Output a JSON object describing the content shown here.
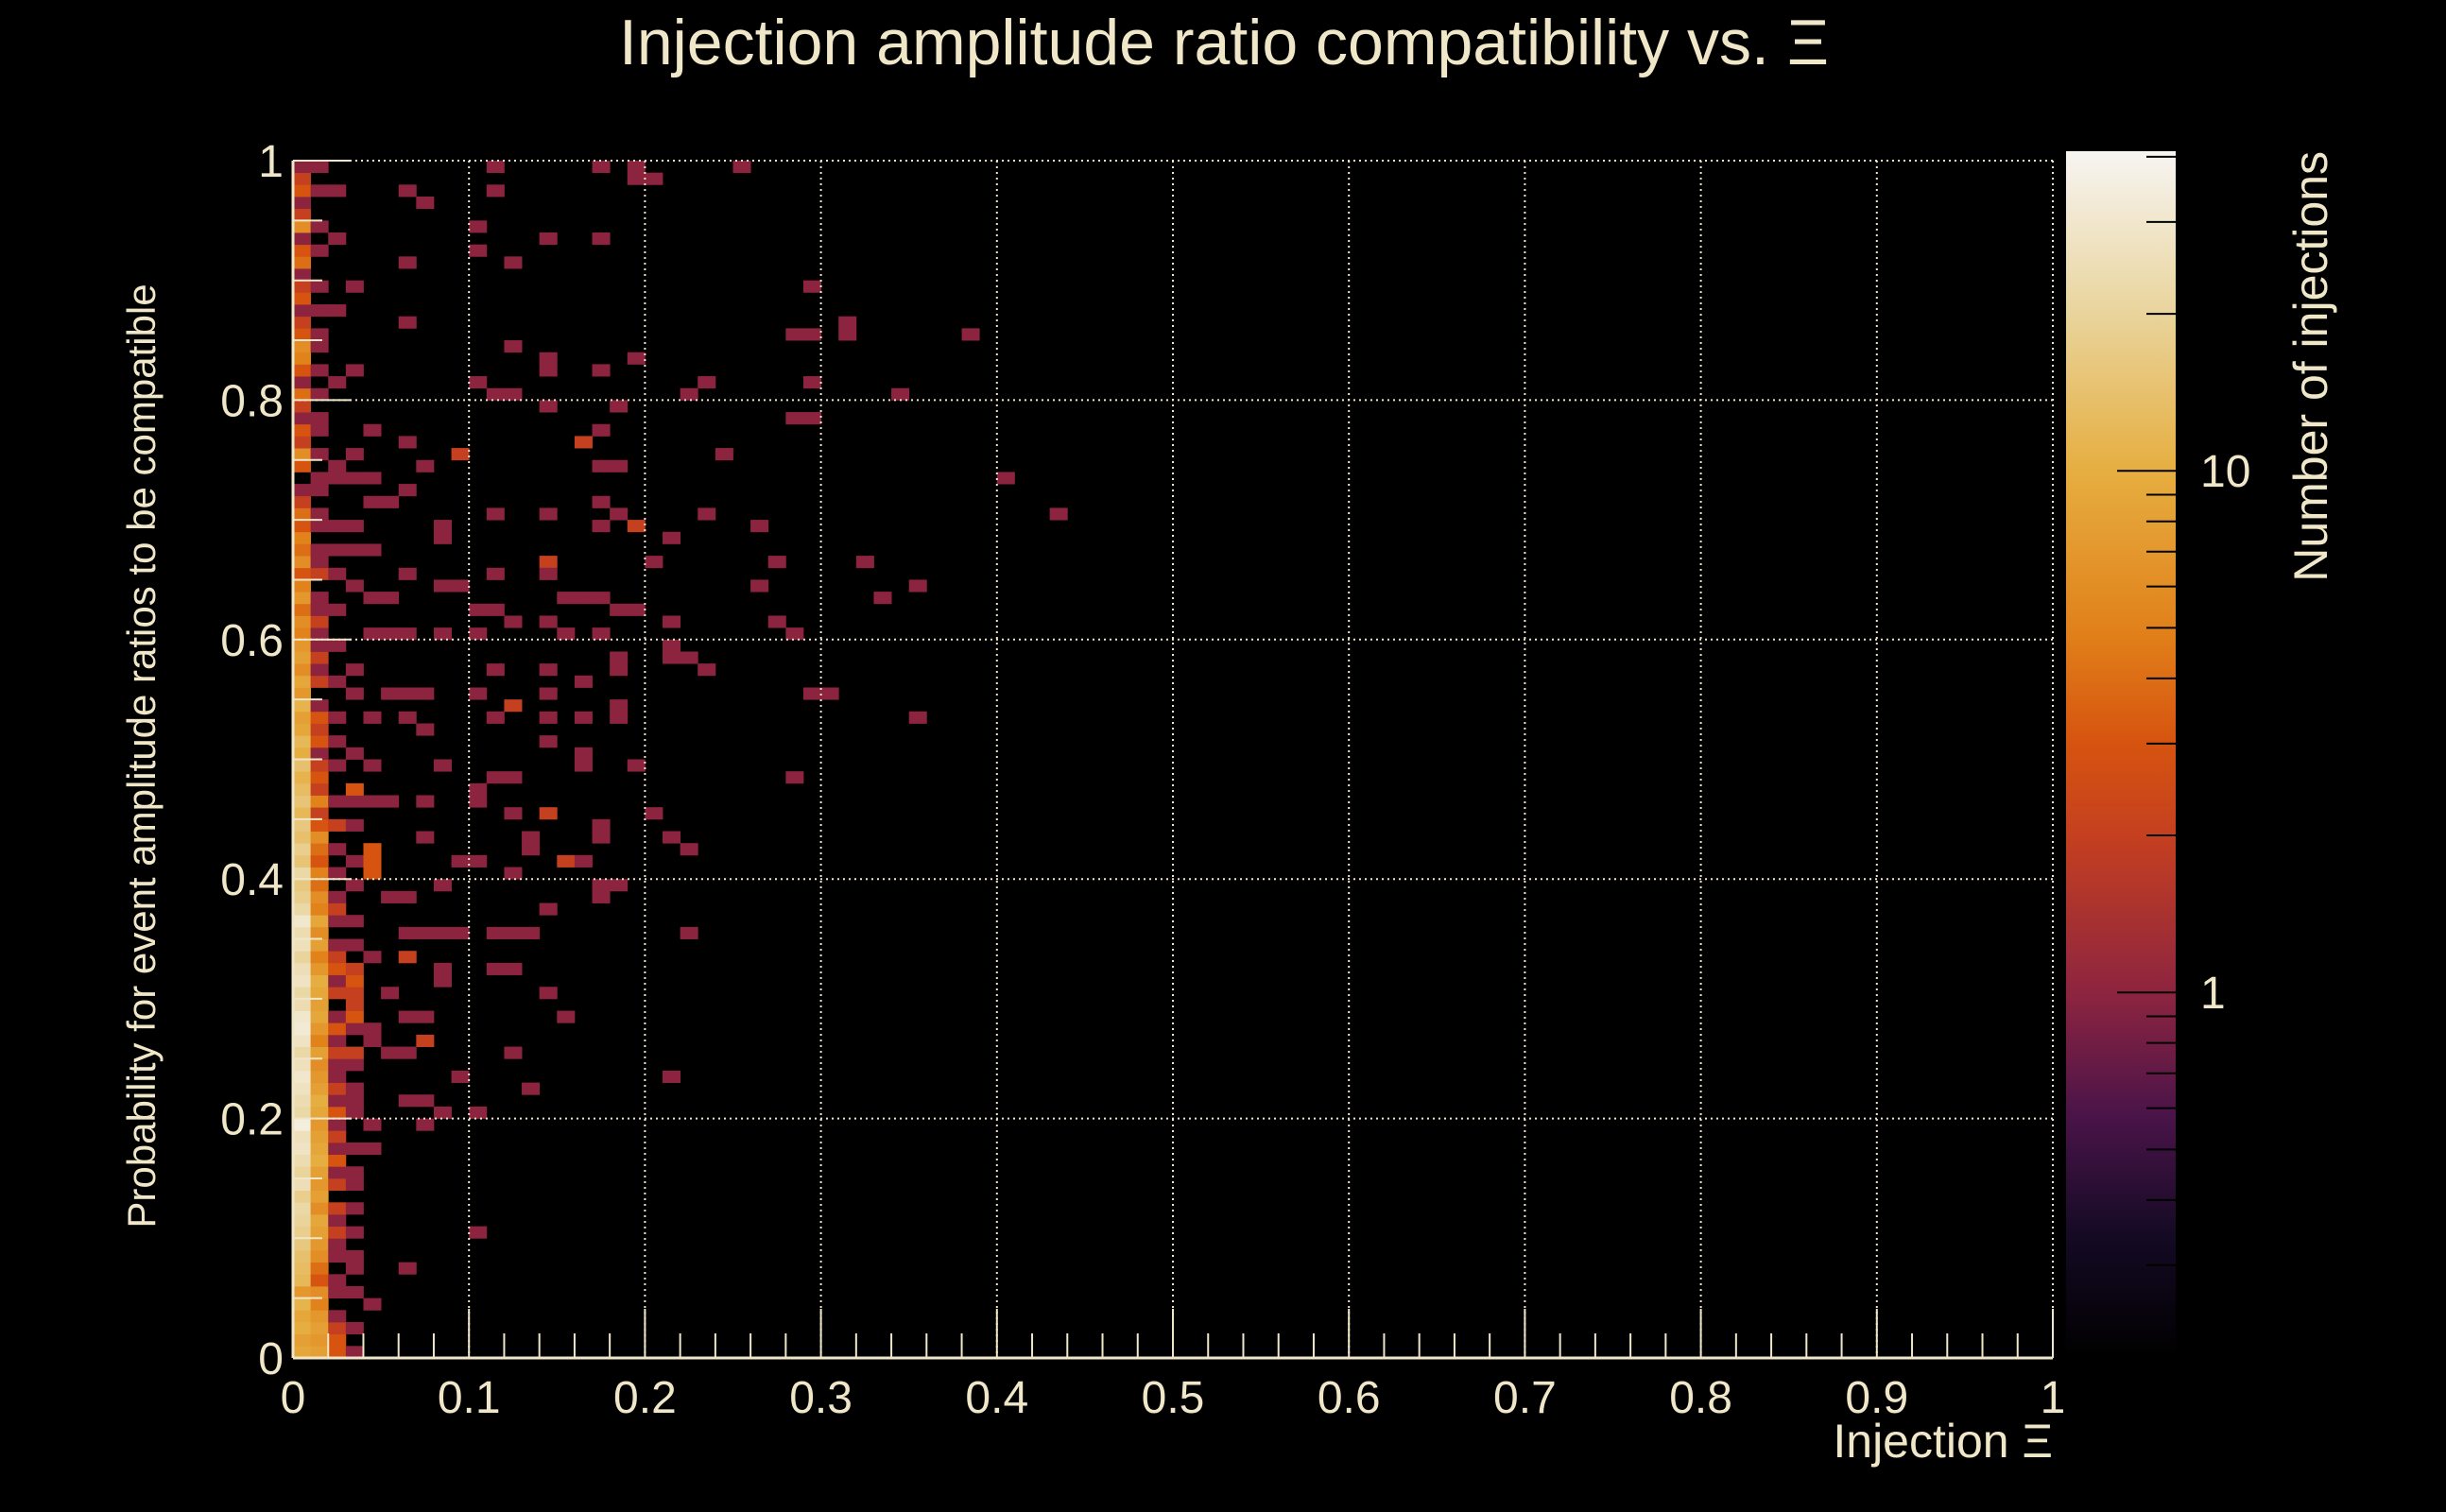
{
  "chart_data": {
    "type": "heatmap",
    "title": "Injection amplitude ratio compatibility vs. Ξ",
    "xlabel": "Injection Ξ",
    "ylabel": "Probability for event amplitude ratios to be compatible",
    "zlabel": "Number of injections",
    "xlim": [
      0,
      1
    ],
    "ylim": [
      0,
      1
    ],
    "zlim": [
      0.2,
      41
    ],
    "zscale": "log",
    "bins": {
      "nx": 100,
      "ny": 100
    },
    "grid": true,
    "x_ticks": [
      {
        "v": 0,
        "label": "0"
      },
      {
        "v": 0.1,
        "label": "0.1"
      },
      {
        "v": 0.2,
        "label": "0.2"
      },
      {
        "v": 0.3,
        "label": "0.3"
      },
      {
        "v": 0.4,
        "label": "0.4"
      },
      {
        "v": 0.5,
        "label": "0.5"
      },
      {
        "v": 0.6,
        "label": "0.6"
      },
      {
        "v": 0.7,
        "label": "0.7"
      },
      {
        "v": 0.8,
        "label": "0.8"
      },
      {
        "v": 0.9,
        "label": "0.9"
      },
      {
        "v": 1,
        "label": "1"
      }
    ],
    "y_ticks": [
      {
        "v": 0,
        "label": "0"
      },
      {
        "v": 0.2,
        "label": "0.2"
      },
      {
        "v": 0.4,
        "label": "0.4"
      },
      {
        "v": 0.6,
        "label": "0.6"
      },
      {
        "v": 0.8,
        "label": "0.8"
      },
      {
        "v": 1,
        "label": "1"
      }
    ],
    "z_ticks": [
      {
        "v": 1,
        "label": "1"
      },
      {
        "v": 10,
        "label": "10"
      }
    ],
    "column_counts_note": "counts per y-bin (bottom to top) for x-bins 0..3",
    "columns": [
      [
        9,
        8,
        10,
        9,
        11,
        7,
        12,
        13,
        14,
        16,
        18,
        20,
        22,
        18,
        25,
        20,
        24,
        28,
        26,
        35,
        22,
        24,
        27,
        30,
        26,
        22,
        28,
        32,
        30,
        24,
        22,
        28,
        25,
        20,
        26,
        24,
        30,
        22,
        18,
        16,
        22,
        15,
        18,
        14,
        16,
        12,
        15,
        13,
        11,
        14,
        10,
        12,
        9,
        8,
        11,
        7,
        9,
        6,
        8,
        7,
        5,
        6,
        4,
        7,
        5,
        3,
        6,
        4,
        5,
        3,
        4,
        2,
        1,
        0,
        3,
        6,
        2,
        3,
        1,
        2,
        4,
        1,
        3,
        5,
        6,
        3,
        2,
        1,
        3,
        2,
        1,
        4,
        3,
        1,
        6,
        2,
        1,
        3,
        2,
        1
      ],
      [
        8,
        7,
        8,
        7,
        5,
        6,
        3,
        4,
        6,
        7,
        8,
        9,
        6,
        8,
        7,
        8,
        10,
        9,
        8,
        7,
        9,
        10,
        8,
        7,
        6,
        8,
        5,
        7,
        9,
        8,
        9,
        10,
        7,
        5,
        8,
        6,
        9,
        5,
        6,
        4,
        5,
        3,
        4,
        6,
        3,
        2,
        5,
        2,
        3,
        2,
        1,
        3,
        2,
        3,
        1,
        0,
        2,
        1,
        2,
        1,
        1,
        2,
        1,
        1,
        0,
        2,
        1,
        1,
        0,
        1,
        1,
        0,
        1,
        1,
        0,
        1,
        0,
        1,
        1,
        0,
        1,
        0,
        1,
        0,
        1,
        1,
        0,
        1,
        0,
        1,
        0,
        0,
        1,
        0,
        1,
        0,
        0,
        1,
        0,
        1
      ],
      [
        3,
        3,
        2,
        1,
        0,
        1,
        1,
        0,
        1,
        1,
        2,
        1,
        2,
        0,
        2,
        1,
        3,
        1,
        2,
        1,
        3,
        1,
        2,
        1,
        1,
        2,
        1,
        3,
        1,
        0,
        2,
        1,
        3,
        2,
        1,
        0,
        1,
        2,
        1,
        0,
        1,
        0,
        1,
        0,
        2,
        0,
        1,
        0,
        0,
        1,
        0,
        1,
        0,
        1,
        0,
        0,
        1,
        0,
        0,
        1,
        0,
        0,
        1,
        0,
        0,
        1,
        0,
        0,
        0,
        1,
        0,
        0,
        0,
        0,
        1,
        0,
        0,
        0,
        0,
        0,
        0,
        1,
        0,
        0,
        0,
        0,
        0,
        1,
        0,
        0,
        0,
        0,
        0,
        1,
        0,
        0,
        0,
        0,
        0,
        0
      ],
      [
        1,
        0,
        1,
        0,
        0,
        1,
        0,
        1,
        1,
        0,
        1,
        0,
        1,
        0,
        1,
        1,
        0,
        1,
        0,
        0,
        1,
        0,
        1,
        0,
        1,
        2,
        0,
        1,
        3,
        2,
        2,
        3,
        2,
        0,
        1,
        0,
        1,
        0,
        0,
        1,
        0,
        1,
        0,
        0,
        1,
        0,
        1,
        0,
        0,
        0,
        1,
        0,
        0,
        0,
        0,
        0,
        0,
        1,
        0,
        0,
        0,
        0,
        0,
        0,
        0,
        0,
        0,
        0,
        0,
        1,
        0,
        0,
        0,
        0,
        0,
        0,
        0,
        0,
        0,
        0,
        0,
        0,
        1,
        0,
        0,
        0,
        0,
        0,
        0,
        0,
        0,
        0,
        0,
        0,
        0,
        0,
        0,
        0,
        0,
        0
      ]
    ],
    "cells": [
      [
        0.113,
        0.996,
        1
      ],
      [
        0.175,
        0.99,
        1
      ],
      [
        0.194,
        0.99,
        1
      ],
      [
        0.254,
        0.99,
        1
      ],
      [
        0.194,
        0.98,
        1
      ],
      [
        0.205,
        0.98,
        1
      ],
      [
        0.024,
        0.97,
        1
      ],
      [
        0.066,
        0.97,
        1
      ],
      [
        0.073,
        0.96,
        1
      ],
      [
        0.113,
        0.97,
        1
      ],
      [
        0.101,
        0.94,
        1
      ],
      [
        0.145,
        0.93,
        1
      ],
      [
        0.175,
        0.93,
        1
      ],
      [
        0.025,
        0.93,
        1
      ],
      [
        0.105,
        0.92,
        1
      ],
      [
        0.066,
        0.91,
        1
      ],
      [
        0.122,
        0.91,
        1
      ],
      [
        0.035,
        0.89,
        1
      ],
      [
        0.293,
        0.89,
        1
      ],
      [
        0.066,
        0.86,
        1
      ],
      [
        0.286,
        0.85,
        1
      ],
      [
        0.293,
        0.85,
        1
      ],
      [
        0.314,
        0.855,
        1
      ],
      [
        0.314,
        0.865,
        1
      ],
      [
        0.385,
        0.85,
        1
      ],
      [
        0.122,
        0.84,
        1
      ],
      [
        0.145,
        0.83,
        1
      ],
      [
        0.145,
        0.825,
        1
      ],
      [
        0.175,
        0.82,
        1
      ],
      [
        0.194,
        0.83,
        1
      ],
      [
        0.105,
        0.81,
        1
      ],
      [
        0.113,
        0.8,
        1
      ],
      [
        0.126,
        0.8,
        1
      ],
      [
        0.236,
        0.81,
        1
      ],
      [
        0.223,
        0.8,
        1
      ],
      [
        0.293,
        0.81,
        1
      ],
      [
        0.345,
        0.8,
        1
      ],
      [
        0.145,
        0.79,
        1
      ],
      [
        0.184,
        0.79,
        1
      ],
      [
        0.286,
        0.78,
        1
      ],
      [
        0.293,
        0.78,
        1
      ],
      [
        0.044,
        0.77,
        1
      ],
      [
        0.175,
        0.77,
        1
      ],
      [
        0.165,
        0.76,
        2
      ],
      [
        0.066,
        0.76,
        1
      ],
      [
        0.094,
        0.75,
        2
      ],
      [
        0.035,
        0.75,
        1
      ],
      [
        0.246,
        0.75,
        1
      ],
      [
        0.073,
        0.74,
        1
      ],
      [
        0.175,
        0.74,
        1
      ],
      [
        0.184,
        0.74,
        1
      ],
      [
        0.024,
        0.73,
        1
      ],
      [
        0.035,
        0.73,
        1
      ],
      [
        0.044,
        0.73,
        1
      ],
      [
        0.404,
        0.73,
        1
      ],
      [
        0.066,
        0.72,
        1
      ],
      [
        0.044,
        0.71,
        1
      ],
      [
        0.055,
        0.71,
        1
      ],
      [
        0.113,
        0.7,
        1
      ],
      [
        0.145,
        0.7,
        1
      ],
      [
        0.175,
        0.71,
        1
      ],
      [
        0.435,
        0.7,
        1
      ],
      [
        0.236,
        0.7,
        1
      ],
      [
        0.184,
        0.7,
        1
      ],
      [
        0.194,
        0.69,
        2
      ],
      [
        0.175,
        0.69,
        1
      ],
      [
        0.085,
        0.69,
        1
      ],
      [
        0.085,
        0.68,
        1
      ],
      [
        0.265,
        0.69,
        1
      ],
      [
        0.215,
        0.68,
        1
      ],
      [
        0.024,
        0.67,
        1
      ],
      [
        0.035,
        0.67,
        1
      ],
      [
        0.044,
        0.67,
        1
      ],
      [
        0.204,
        0.66,
        1
      ],
      [
        0.274,
        0.66,
        1
      ],
      [
        0.324,
        0.66,
        1
      ],
      [
        0.145,
        0.66,
        2
      ],
      [
        0.145,
        0.65,
        1
      ],
      [
        0.113,
        0.65,
        1
      ],
      [
        0.066,
        0.65,
        1
      ],
      [
        0.035,
        0.64,
        1
      ],
      [
        0.044,
        0.63,
        1
      ],
      [
        0.055,
        0.63,
        1
      ],
      [
        0.085,
        0.64,
        1
      ],
      [
        0.094,
        0.64,
        1
      ],
      [
        0.265,
        0.64,
        1
      ],
      [
        0.355,
        0.64,
        1
      ],
      [
        0.335,
        0.63,
        1
      ],
      [
        0.154,
        0.63,
        1
      ],
      [
        0.165,
        0.63,
        1
      ],
      [
        0.175,
        0.63,
        1
      ],
      [
        0.113,
        0.62,
        1
      ],
      [
        0.105,
        0.62,
        1
      ],
      [
        0.122,
        0.61,
        1
      ],
      [
        0.184,
        0.62,
        1
      ],
      [
        0.194,
        0.62,
        1
      ],
      [
        0.274,
        0.615,
        1
      ],
      [
        0.286,
        0.605,
        1
      ],
      [
        0.044,
        0.6,
        1
      ],
      [
        0.055,
        0.6,
        1
      ],
      [
        0.066,
        0.6,
        1
      ],
      [
        0.085,
        0.6,
        1
      ],
      [
        0.101,
        0.6,
        1
      ],
      [
        0.145,
        0.615,
        1
      ],
      [
        0.154,
        0.605,
        1
      ],
      [
        0.175,
        0.605,
        1
      ],
      [
        0.215,
        0.61,
        1
      ],
      [
        0.215,
        0.59,
        1
      ],
      [
        0.215,
        0.585,
        1
      ],
      [
        0.225,
        0.585,
        1
      ],
      [
        0.184,
        0.585,
        1
      ],
      [
        0.184,
        0.575,
        1
      ],
      [
        0.236,
        0.575,
        1
      ],
      [
        0.165,
        0.565,
        1
      ],
      [
        0.145,
        0.575,
        1
      ],
      [
        0.113,
        0.575,
        1
      ],
      [
        0.293,
        0.55,
        1
      ],
      [
        0.303,
        0.55,
        1
      ],
      [
        0.035,
        0.55,
        1
      ],
      [
        0.055,
        0.55,
        1
      ],
      [
        0.066,
        0.55,
        1
      ],
      [
        0.073,
        0.55,
        1
      ],
      [
        0.105,
        0.55,
        1
      ],
      [
        0.122,
        0.545,
        2
      ],
      [
        0.113,
        0.53,
        1
      ],
      [
        0.145,
        0.55,
        1
      ],
      [
        0.145,
        0.53,
        1
      ],
      [
        0.165,
        0.53,
        1
      ],
      [
        0.184,
        0.545,
        1
      ],
      [
        0.184,
        0.535,
        1
      ],
      [
        0.355,
        0.53,
        1
      ],
      [
        0.044,
        0.53,
        1
      ],
      [
        0.066,
        0.53,
        1
      ],
      [
        0.073,
        0.52,
        1
      ],
      [
        0.145,
        0.51,
        1
      ],
      [
        0.035,
        0.5,
        1
      ],
      [
        0.044,
        0.49,
        1
      ],
      [
        0.085,
        0.49,
        1
      ],
      [
        0.165,
        0.5,
        1
      ],
      [
        0.165,
        0.49,
        1
      ],
      [
        0.194,
        0.49,
        1
      ],
      [
        0.113,
        0.48,
        1
      ],
      [
        0.122,
        0.48,
        1
      ],
      [
        0.286,
        0.48,
        1
      ],
      [
        0.105,
        0.475,
        1
      ],
      [
        0.035,
        0.475,
        3
      ],
      [
        0.044,
        0.46,
        1
      ],
      [
        0.055,
        0.46,
        1
      ],
      [
        0.073,
        0.46,
        1
      ],
      [
        0.101,
        0.46,
        1
      ],
      [
        0.122,
        0.45,
        1
      ],
      [
        0.145,
        0.45,
        2
      ],
      [
        0.204,
        0.45,
        1
      ],
      [
        0.175,
        0.44,
        1
      ],
      [
        0.175,
        0.435,
        1
      ],
      [
        0.073,
        0.43,
        1
      ],
      [
        0.134,
        0.43,
        1
      ],
      [
        0.134,
        0.42,
        1
      ],
      [
        0.215,
        0.43,
        1
      ],
      [
        0.225,
        0.42,
        1
      ],
      [
        0.094,
        0.41,
        1
      ],
      [
        0.101,
        0.41,
        1
      ],
      [
        0.154,
        0.41,
        2
      ],
      [
        0.165,
        0.41,
        1
      ],
      [
        0.122,
        0.4,
        1
      ],
      [
        0.044,
        0.42,
        3
      ],
      [
        0.044,
        0.41,
        3
      ],
      [
        0.044,
        0.4,
        3
      ],
      [
        0.175,
        0.39,
        1
      ],
      [
        0.184,
        0.39,
        1
      ],
      [
        0.175,
        0.38,
        1
      ],
      [
        0.085,
        0.39,
        1
      ],
      [
        0.055,
        0.38,
        1
      ],
      [
        0.066,
        0.38,
        1
      ],
      [
        0.145,
        0.37,
        1
      ],
      [
        0.134,
        0.35,
        1
      ],
      [
        0.126,
        0.35,
        1
      ],
      [
        0.113,
        0.35,
        1
      ],
      [
        0.225,
        0.35,
        1
      ],
      [
        0.066,
        0.35,
        1
      ],
      [
        0.073,
        0.35,
        1
      ],
      [
        0.085,
        0.35,
        1
      ],
      [
        0.094,
        0.35,
        1
      ],
      [
        0.045,
        0.33,
        1
      ],
      [
        0.066,
        0.33,
        2
      ],
      [
        0.113,
        0.32,
        1
      ],
      [
        0.122,
        0.32,
        1
      ],
      [
        0.085,
        0.32,
        1
      ],
      [
        0.085,
        0.31,
        1
      ],
      [
        0.055,
        0.3,
        1
      ],
      [
        0.066,
        0.29,
        1
      ],
      [
        0.073,
        0.28,
        1
      ],
      [
        0.145,
        0.3,
        1
      ],
      [
        0.154,
        0.28,
        1
      ],
      [
        0.045,
        0.27,
        1
      ],
      [
        0.045,
        0.26,
        1
      ],
      [
        0.073,
        0.26,
        2
      ],
      [
        0.066,
        0.25,
        1
      ],
      [
        0.055,
        0.25,
        1
      ],
      [
        0.126,
        0.25,
        1
      ],
      [
        0.094,
        0.23,
        1
      ],
      [
        0.215,
        0.23,
        1
      ],
      [
        0.134,
        0.22,
        1
      ],
      [
        0.035,
        0.21,
        1
      ],
      [
        0.066,
        0.21,
        1
      ],
      [
        0.073,
        0.21,
        1
      ],
      [
        0.085,
        0.2,
        1
      ],
      [
        0.105,
        0.2,
        1
      ],
      [
        0.073,
        0.19,
        1
      ],
      [
        0.045,
        0.19,
        1
      ],
      [
        0.045,
        0.17,
        1
      ],
      [
        0.105,
        0.1,
        1
      ],
      [
        0.066,
        0.07,
        1
      ],
      [
        0.045,
        0.04,
        1
      ]
    ],
    "colormap": [
      {
        "t": 0.0,
        "color": "#000000"
      },
      {
        "t": 0.1,
        "color": "#140a24"
      },
      {
        "t": 0.2,
        "color": "#4a1449"
      },
      {
        "t": 0.3,
        "color": "#8c2440"
      },
      {
        "t": 0.43,
        "color": "#c43f20"
      },
      {
        "t": 0.51,
        "color": "#d6540f"
      },
      {
        "t": 0.6,
        "color": "#e1801a"
      },
      {
        "t": 0.735,
        "color": "#e6ae40"
      },
      {
        "t": 0.865,
        "color": "#e9d49c"
      },
      {
        "t": 1.0,
        "color": "#f7f5f2"
      }
    ]
  },
  "colors": {
    "background": "#000000",
    "text": "#f0e6c8",
    "axis": "#f0e6c8"
  }
}
